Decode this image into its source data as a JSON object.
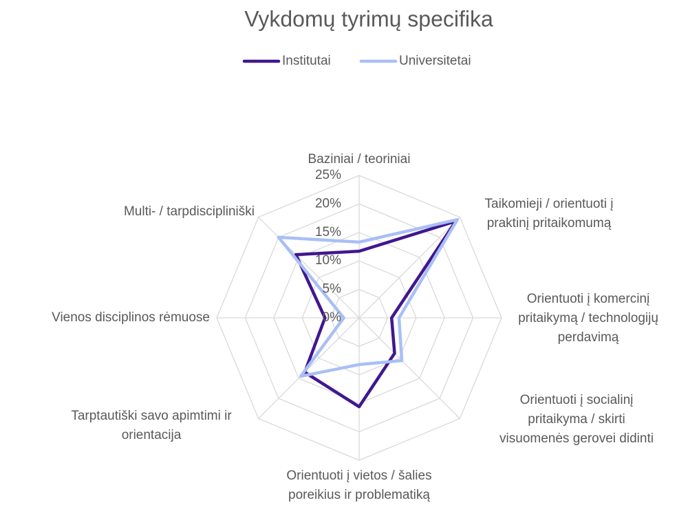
{
  "chart_data": {
    "type": "radar",
    "title": "Vykdomų tyrimų specifika",
    "categories": [
      "Baziniai / teoriniai",
      "Taikomieji / orientuoti į\npraktinį pritaikomumą",
      "Orientuoti į komercinį\npritaikymą / technologijų\nperdavimą",
      "Orientuoti į socialinį\npritaikyma / skirti\nvisuomenės gerovei didinti",
      "Orientuoti į vietos / šalies\nporeikius ir problematiką",
      "Tarptautiški savo apimtimi ir\norientacija",
      "Vienos disciplinos rėmuose",
      "Multi- / tarpdiscipliniški"
    ],
    "series": [
      {
        "name": "Institutai",
        "color": "#40178f",
        "values": [
          11.7,
          24,
          5.7,
          8.8,
          15.6,
          13.5,
          6,
          15.7
        ]
      },
      {
        "name": "Universitetai",
        "color": "#a9bff5",
        "values": [
          13.3,
          24.4,
          7,
          10.6,
          8.2,
          14.5,
          2.7,
          20
        ]
      }
    ],
    "ylim": [
      0,
      25
    ],
    "yticks": [
      {
        "value": 0,
        "label": "0%"
      },
      {
        "value": 5,
        "label": "5%"
      },
      {
        "value": 10,
        "label": "10%"
      },
      {
        "value": 15,
        "label": "15%"
      },
      {
        "value": 20,
        "label": "20%"
      },
      {
        "value": 25,
        "label": "25%"
      }
    ],
    "grid": true,
    "legend": "top"
  }
}
